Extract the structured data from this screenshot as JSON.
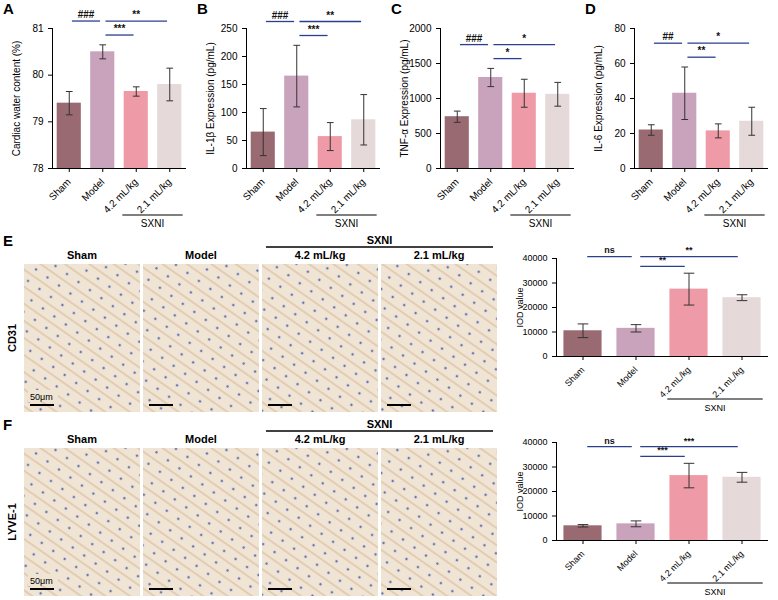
{
  "chart_data": [
    {
      "panel": "A",
      "type": "bar",
      "y_label": "Cardiac water content (%)",
      "categories": [
        "Sham",
        "Model",
        "4.2 mL/kg",
        "2.1 mL/kg"
      ],
      "values": [
        79.4,
        80.5,
        79.65,
        79.8
      ],
      "errors": [
        0.25,
        0.15,
        0.1,
        0.35
      ],
      "colors": [
        "#9a6a72",
        "#c9a2bc",
        "#ef9ba7",
        "#e6d9d9"
      ],
      "ylim": [
        78,
        81
      ],
      "yticks": [
        78,
        79,
        80,
        81
      ],
      "group": {
        "label": "SXNI",
        "categories": [
          "4.2 mL/kg",
          "2.1 mL/kg"
        ]
      },
      "comparisons": [
        {
          "from": "Sham",
          "to": "Model",
          "label": "###"
        },
        {
          "from": "Model",
          "to": "4.2 mL/kg",
          "label": "***"
        },
        {
          "from": "Model",
          "to": "2.1 mL/kg",
          "label": "**"
        }
      ]
    },
    {
      "panel": "B",
      "type": "bar",
      "y_label": "IL-1β Expression (pg/mL)",
      "categories": [
        "Sham",
        "Model",
        "4.2 mL/kg",
        "2.1 mL/kg"
      ],
      "values": [
        65,
        165,
        57,
        87
      ],
      "errors": [
        42,
        55,
        25,
        45
      ],
      "colors": [
        "#9a6a72",
        "#c9a2bc",
        "#ef9ba7",
        "#e6d9d9"
      ],
      "ylim": [
        0,
        250
      ],
      "yticks": [
        0,
        50,
        100,
        150,
        200,
        250
      ],
      "group": {
        "label": "SXNI",
        "categories": [
          "4.2 mL/kg",
          "2.1 mL/kg"
        ]
      },
      "comparisons": [
        {
          "from": "Sham",
          "to": "Model",
          "label": "###"
        },
        {
          "from": "Model",
          "to": "4.2 mL/kg",
          "label": "***"
        },
        {
          "from": "Model",
          "to": "2.1 mL/kg",
          "label": "**"
        }
      ]
    },
    {
      "panel": "C",
      "type": "bar",
      "y_label": "TNF-α Expression (pg/mL)",
      "categories": [
        "Sham",
        "Model",
        "4.2 mL/kg",
        "2.1 mL/kg"
      ],
      "values": [
        740,
        1300,
        1075,
        1060
      ],
      "errors": [
        80,
        130,
        200,
        170
      ],
      "colors": [
        "#9a6a72",
        "#c9a2bc",
        "#ef9ba7",
        "#e6d9d9"
      ],
      "ylim": [
        0,
        2000
      ],
      "yticks": [
        0,
        500,
        1000,
        1500,
        2000
      ],
      "group": {
        "label": "SXNI",
        "categories": [
          "4.2 mL/kg",
          "2.1 mL/kg"
        ]
      },
      "comparisons": [
        {
          "from": "Sham",
          "to": "Model",
          "label": "###"
        },
        {
          "from": "Model",
          "to": "4.2 mL/kg",
          "label": "*"
        },
        {
          "from": "Model",
          "to": "2.1 mL/kg",
          "label": "*"
        }
      ]
    },
    {
      "panel": "D",
      "type": "bar",
      "y_label": "IL-6 Expression (pg/mL)",
      "categories": [
        "Sham",
        "Model",
        "4.2 mL/kg",
        "2.1 mL/kg"
      ],
      "values": [
        22,
        43,
        21.5,
        27
      ],
      "errors": [
        3,
        15,
        4,
        8
      ],
      "colors": [
        "#9a6a72",
        "#c9a2bc",
        "#ef9ba7",
        "#e6d9d9"
      ],
      "ylim": [
        0,
        80
      ],
      "yticks": [
        0,
        20,
        40,
        60,
        80
      ],
      "group": {
        "label": "SXNI",
        "categories": [
          "4.2 mL/kg",
          "2.1 mL/kg"
        ]
      },
      "comparisons": [
        {
          "from": "Sham",
          "to": "Model",
          "label": "##"
        },
        {
          "from": "Model",
          "to": "4.2 mL/kg",
          "label": "**"
        },
        {
          "from": "Model",
          "to": "2.1 mL/kg",
          "label": "*"
        }
      ]
    },
    {
      "panel": "E",
      "type": "bar",
      "y_label": "IOD value",
      "categories": [
        "Sham",
        "Model",
        "4.2 mL/kg",
        "2.1 mL/kg"
      ],
      "values": [
        10500,
        11500,
        27500,
        24000
      ],
      "errors": [
        2800,
        1500,
        6500,
        1200
      ],
      "colors": [
        "#9a6a72",
        "#c9a2bc",
        "#ef9ba7",
        "#e6d9d9"
      ],
      "ylim": [
        0,
        40000
      ],
      "yticks": [
        0,
        10000,
        20000,
        30000,
        40000
      ],
      "group": {
        "label": "SXNI",
        "categories": [
          "4.2 mL/kg",
          "2.1 mL/kg"
        ]
      },
      "comparisons": [
        {
          "from": "Sham",
          "to": "Model",
          "label": "ns"
        },
        {
          "from": "Model",
          "to": "4.2 mL/kg",
          "label": "**"
        },
        {
          "from": "Model",
          "to": "2.1 mL/kg",
          "label": "**"
        }
      ],
      "images": {
        "stain": "CD31",
        "columns": [
          "Sham",
          "Model",
          "4.2 mL/kg",
          "2.1 mL/kg"
        ],
        "group": {
          "label": "SXNI",
          "columns": [
            "4.2 mL/kg",
            "2.1 mL/kg"
          ]
        },
        "scale_bar": "50μm"
      }
    },
    {
      "panel": "F",
      "type": "bar",
      "y_label": "IOD value",
      "categories": [
        "Sham",
        "Model",
        "4.2 mL/kg",
        "2.1 mL/kg"
      ],
      "values": [
        6000,
        6800,
        26500,
        25800
      ],
      "errors": [
        500,
        1200,
        5000,
        2000
      ],
      "colors": [
        "#9a6a72",
        "#c9a2bc",
        "#ef9ba7",
        "#e6d9d9"
      ],
      "ylim": [
        0,
        40000
      ],
      "yticks": [
        0,
        10000,
        20000,
        30000,
        40000
      ],
      "group": {
        "label": "SXNI",
        "categories": [
          "4.2 mL/kg",
          "2.1 mL/kg"
        ]
      },
      "comparisons": [
        {
          "from": "Sham",
          "to": "Model",
          "label": "ns"
        },
        {
          "from": "Model",
          "to": "4.2 mL/kg",
          "label": "***"
        },
        {
          "from": "Model",
          "to": "2.1 mL/kg",
          "label": "***"
        }
      ],
      "images": {
        "stain": "LYVE-1",
        "columns": [
          "Sham",
          "Model",
          "4.2 mL/kg",
          "2.1 mL/kg"
        ],
        "group": {
          "label": "SXNI",
          "columns": [
            "4.2 mL/kg",
            "2.1 mL/kg"
          ]
        },
        "scale_bar": "50μm"
      }
    }
  ]
}
